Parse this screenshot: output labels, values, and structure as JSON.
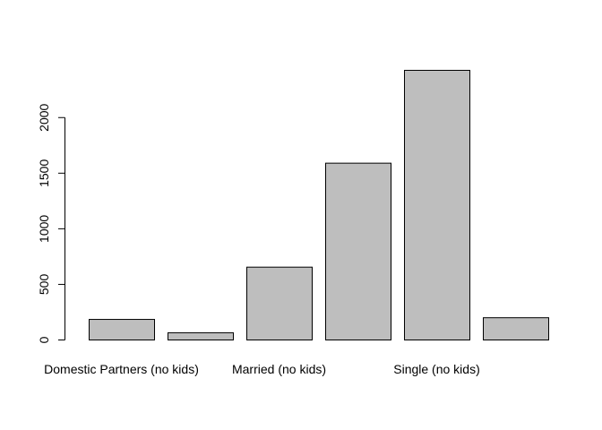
{
  "chart_data": {
    "type": "bar",
    "title": "",
    "xlabel": "",
    "ylabel": "",
    "categories": [
      "Domestic Partners (no kids)",
      "",
      "Married (no kids)",
      "",
      "Single (no kids)",
      ""
    ],
    "values": [
      185,
      65,
      655,
      1590,
      2425,
      200
    ],
    "ylim": [
      0,
      2425
    ],
    "yticks": [
      0,
      500,
      1000,
      1500,
      2000
    ],
    "grid": false,
    "legend": "none",
    "colors": {
      "bar_fill": "#bebebe",
      "bar_stroke": "#000000"
    }
  }
}
